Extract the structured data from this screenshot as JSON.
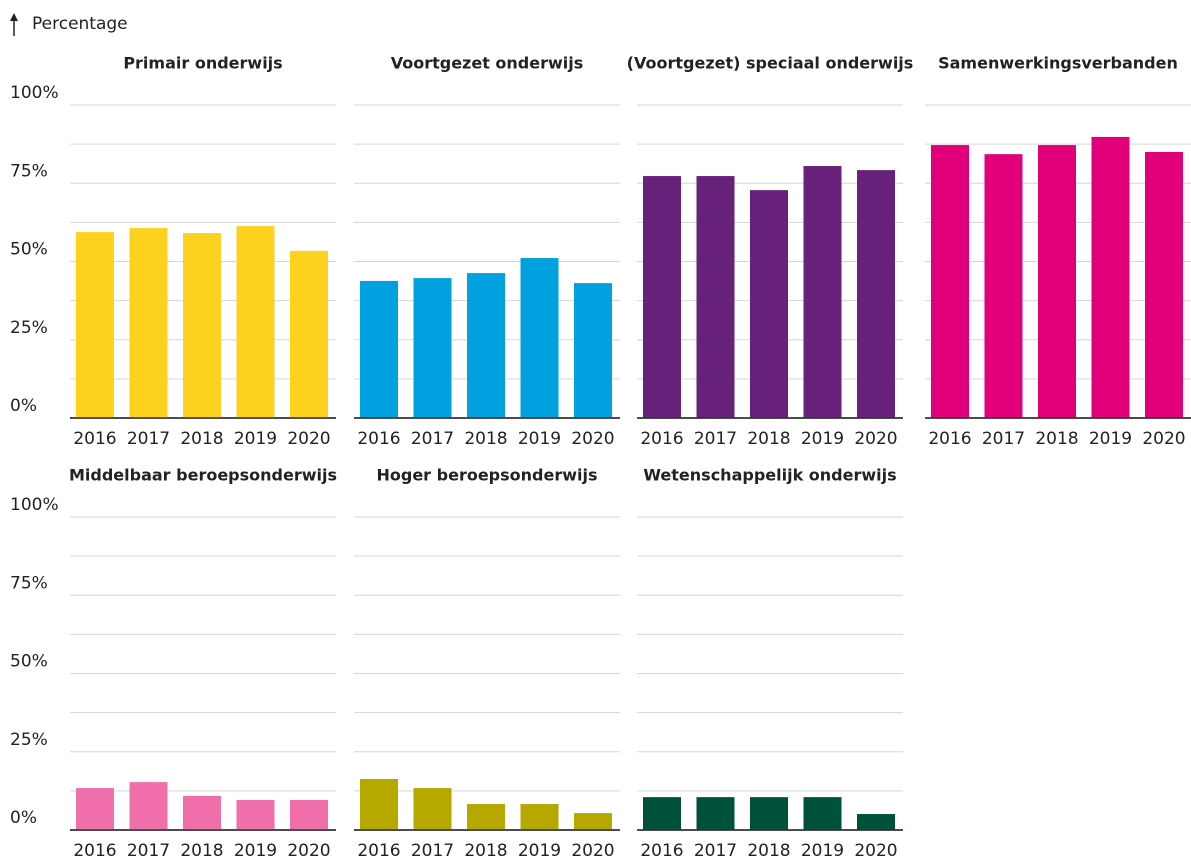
{
  "y_label": "Percentage",
  "chart_data": [
    {
      "type": "bar",
      "title": "Primair onderwijs",
      "color": "#fdd21f",
      "categories": [
        "2016",
        "2017",
        "2018",
        "2019",
        "2020"
      ],
      "values": [
        59.4,
        60.7,
        59.1,
        61.3,
        53.4
      ],
      "ylim": [
        0,
        100
      ],
      "yticks": [
        {
          "value": 0,
          "label": "0%"
        },
        {
          "value": 25,
          "label": "25%"
        },
        {
          "value": 50,
          "label": "50%"
        },
        {
          "value": 75,
          "label": "75%"
        },
        {
          "value": 100,
          "label": "100%"
        }
      ],
      "minor_yticks": [
        12.5,
        37.5,
        62.5,
        87.5
      ],
      "grid": true
    },
    {
      "type": "bar",
      "title": "Voortgezet onderwijs",
      "color": "#01a1df",
      "categories": [
        "2016",
        "2017",
        "2018",
        "2019",
        "2020"
      ],
      "values": [
        43.8,
        44.7,
        46.3,
        51.1,
        43.1
      ],
      "ylim": [
        0,
        100
      ],
      "minor_yticks": [
        0,
        12.5,
        25,
        37.5,
        50,
        62.5,
        75,
        87.5,
        100
      ],
      "grid": true
    },
    {
      "type": "bar",
      "title": "(Voortgezet) speciaal onderwijs",
      "color": "#68217a",
      "categories": [
        "2016",
        "2017",
        "2018",
        "2019",
        "2020"
      ],
      "values": [
        77.3,
        77.3,
        72.8,
        80.5,
        79.2
      ],
      "ylim": [
        0,
        100
      ],
      "minor_yticks": [
        0,
        12.5,
        25,
        37.5,
        50,
        62.5,
        75,
        87.5,
        100
      ],
      "grid": true
    },
    {
      "type": "bar",
      "title": "Samenwerkingsverbanden",
      "color": "#e2007a",
      "categories": [
        "2016",
        "2017",
        "2018",
        "2019",
        "2020"
      ],
      "values": [
        87.2,
        84.3,
        87.2,
        89.8,
        85.0
      ],
      "ylim": [
        0,
        100
      ],
      "minor_yticks": [
        0,
        12.5,
        25,
        37.5,
        50,
        62.5,
        75,
        87.5,
        100
      ],
      "grid": true
    },
    {
      "type": "bar",
      "title": "Middelbaar beroepsonderwijs",
      "color": "#f06ea9",
      "categories": [
        "2016",
        "2017",
        "2018",
        "2019",
        "2020"
      ],
      "values": [
        13.4,
        15.3,
        10.9,
        9.6,
        9.6
      ],
      "ylim": [
        0,
        100
      ],
      "yticks": [
        {
          "value": 0,
          "label": "0%"
        },
        {
          "value": 25,
          "label": "25%"
        },
        {
          "value": 50,
          "label": "50%"
        },
        {
          "value": 75,
          "label": "75%"
        },
        {
          "value": 100,
          "label": "100%"
        }
      ],
      "minor_yticks": [
        12.5,
        37.5,
        62.5,
        87.5
      ],
      "grid": true
    },
    {
      "type": "bar",
      "title": "Hoger beroepsonderwijs",
      "color": "#b5a900",
      "categories": [
        "2016",
        "2017",
        "2018",
        "2019",
        "2020"
      ],
      "values": [
        16.3,
        13.4,
        8.3,
        8.3,
        5.4
      ],
      "ylim": [
        0,
        100
      ],
      "minor_yticks": [
        0,
        12.5,
        25,
        37.5,
        50,
        62.5,
        75,
        87.5,
        100
      ],
      "grid": true
    },
    {
      "type": "bar",
      "title": "Wetenschappelijk onderwijs",
      "color": "#00513a",
      "categories": [
        "2016",
        "2017",
        "2018",
        "2019",
        "2020"
      ],
      "values": [
        10.5,
        10.5,
        10.5,
        10.5,
        5.1
      ],
      "ylim": [
        0,
        100
      ],
      "minor_yticks": [
        0,
        12.5,
        25,
        37.5,
        50,
        62.5,
        75,
        87.5,
        100
      ],
      "grid": true
    }
  ]
}
